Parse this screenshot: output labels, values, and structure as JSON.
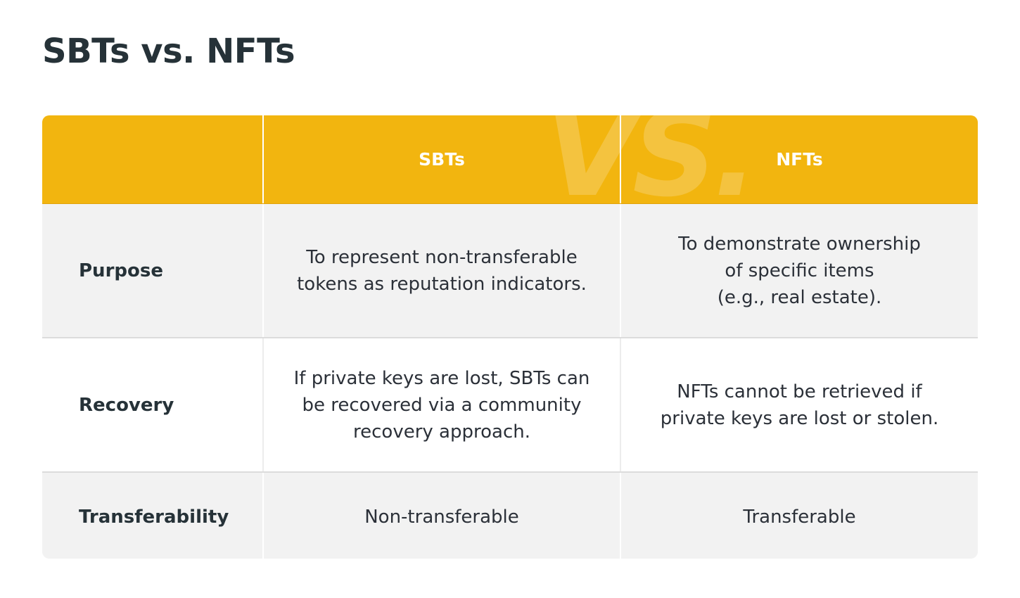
{
  "title": "SBTs vs. NFTs",
  "header": {
    "columns": [
      "",
      "SBTs",
      "NFTs"
    ],
    "watermark": "VS."
  },
  "rows": [
    {
      "label": "Purpose",
      "sbts": "To represent non-transferable\ntokens as reputation indicators.",
      "nfts": "To demonstrate ownership\nof specific items\n(e.g., real estate)."
    },
    {
      "label": "Recovery",
      "sbts": "If private keys are lost, SBTs can\nbe recovered via a community\nrecovery approach.",
      "nfts": "NFTs cannot be retrieved if\nprivate keys are lost or stolen."
    },
    {
      "label": "Transferability",
      "sbts": "Non-transferable",
      "nfts": "Transferable"
    }
  ],
  "colors": {
    "header_bg": "#f2b50f",
    "row_alt_bg": "#f2f2f2",
    "text": "#2b3038"
  }
}
